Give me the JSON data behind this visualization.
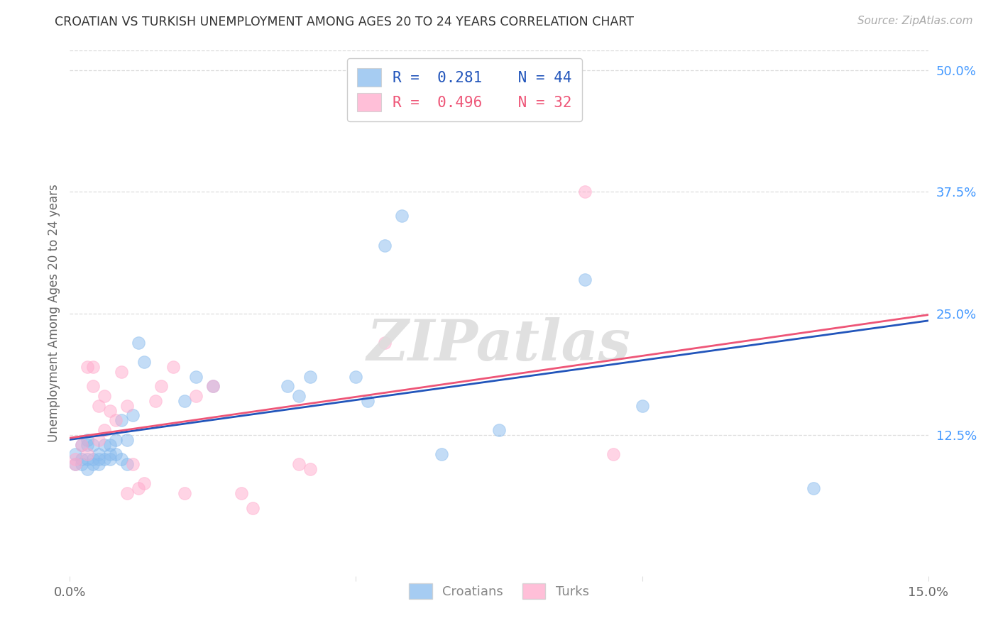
{
  "title": "CROATIAN VS TURKISH UNEMPLOYMENT AMONG AGES 20 TO 24 YEARS CORRELATION CHART",
  "source": "Source: ZipAtlas.com",
  "ylabel": "Unemployment Among Ages 20 to 24 years",
  "xlim": [
    0.0,
    0.15
  ],
  "ylim": [
    -0.02,
    0.52
  ],
  "xticks": [
    0.0,
    0.05,
    0.1,
    0.15
  ],
  "xtick_labels": [
    "0.0%",
    "",
    "",
    "15.0%"
  ],
  "yticks": [
    0.125,
    0.25,
    0.375,
    0.5
  ],
  "ytick_labels": [
    "12.5%",
    "25.0%",
    "37.5%",
    "50.0%"
  ],
  "croatian_color": "#88BBEE",
  "turkish_color": "#FFAACC",
  "line_color_croatian": "#2255BB",
  "line_color_turkish": "#EE5577",
  "R_croatian": "0.281",
  "N_croatian": "44",
  "R_turkish": "0.496",
  "N_turkish": "32",
  "background_color": "#ffffff",
  "grid_color": "#DDDDDD",
  "axis_label_color": "#666666",
  "right_tick_color": "#4499FF",
  "source_color": "#AAAAAA",
  "title_color": "#333333",
  "watermark_color": "#DDDDDD",
  "croatian_x": [
    0.001,
    0.001,
    0.002,
    0.002,
    0.002,
    0.003,
    0.003,
    0.003,
    0.003,
    0.004,
    0.004,
    0.004,
    0.005,
    0.005,
    0.005,
    0.006,
    0.006,
    0.007,
    0.007,
    0.007,
    0.008,
    0.008,
    0.009,
    0.009,
    0.01,
    0.01,
    0.011,
    0.012,
    0.013,
    0.02,
    0.022,
    0.025,
    0.038,
    0.04,
    0.042,
    0.05,
    0.052,
    0.055,
    0.058,
    0.065,
    0.075,
    0.09,
    0.1,
    0.13
  ],
  "croatian_y": [
    0.095,
    0.105,
    0.1,
    0.115,
    0.095,
    0.115,
    0.12,
    0.1,
    0.09,
    0.1,
    0.115,
    0.095,
    0.105,
    0.1,
    0.095,
    0.115,
    0.1,
    0.105,
    0.115,
    0.1,
    0.12,
    0.105,
    0.14,
    0.1,
    0.12,
    0.095,
    0.145,
    0.22,
    0.2,
    0.16,
    0.185,
    0.175,
    0.175,
    0.165,
    0.185,
    0.185,
    0.16,
    0.32,
    0.35,
    0.105,
    0.13,
    0.285,
    0.155,
    0.07
  ],
  "turkish_x": [
    0.001,
    0.001,
    0.002,
    0.003,
    0.003,
    0.004,
    0.004,
    0.005,
    0.005,
    0.006,
    0.006,
    0.007,
    0.008,
    0.009,
    0.01,
    0.01,
    0.011,
    0.012,
    0.013,
    0.015,
    0.016,
    0.018,
    0.02,
    0.022,
    0.025,
    0.03,
    0.032,
    0.04,
    0.042,
    0.055,
    0.09,
    0.095
  ],
  "turkish_y": [
    0.095,
    0.1,
    0.115,
    0.105,
    0.195,
    0.175,
    0.195,
    0.12,
    0.155,
    0.13,
    0.165,
    0.15,
    0.14,
    0.19,
    0.155,
    0.065,
    0.095,
    0.07,
    0.075,
    0.16,
    0.175,
    0.195,
    0.065,
    0.165,
    0.175,
    0.065,
    0.05,
    0.095,
    0.09,
    0.22,
    0.375,
    0.105
  ]
}
